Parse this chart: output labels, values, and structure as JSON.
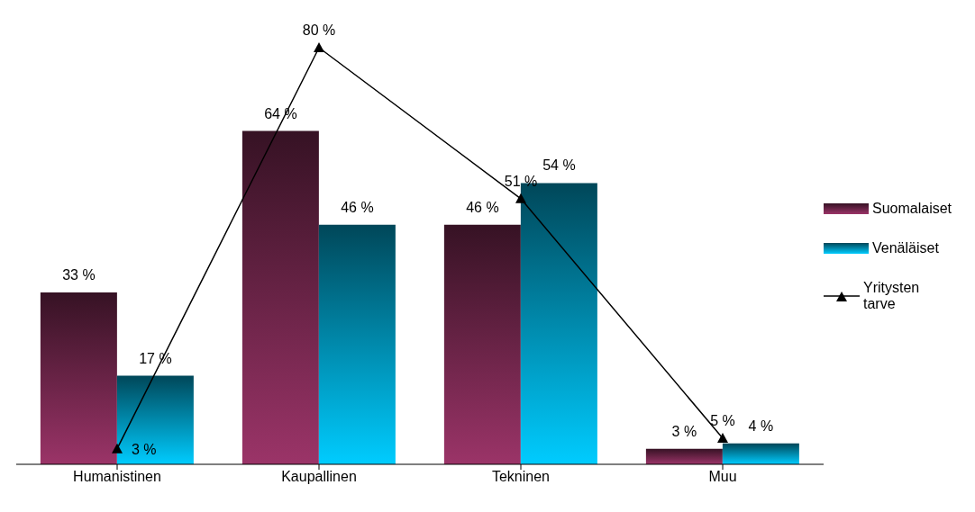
{
  "chart_data": {
    "type": "bar",
    "categories": [
      "Humanistinen",
      "Kaupallinen",
      "Tekninen",
      "Muu"
    ],
    "series": [
      {
        "name": "Suomalaiset",
        "color": "#9b3468",
        "values": [
          33,
          64,
          46,
          3
        ],
        "value_labels": [
          "33 %",
          "64 %",
          "46 %",
          "3 %"
        ]
      },
      {
        "name": "Venäläiset",
        "color": "#00ccff",
        "values": [
          17,
          46,
          54,
          4
        ],
        "value_labels": [
          "17 %",
          "46 %",
          "54 %",
          "4 %"
        ]
      },
      {
        "name": "Yritysten tarve",
        "type": "line",
        "color": "#000000",
        "marker": "triangle",
        "values": [
          3,
          80,
          51,
          5
        ],
        "value_labels": [
          "3 %",
          "80 %",
          "51 %",
          "5 %"
        ]
      }
    ],
    "legend": "right"
  }
}
